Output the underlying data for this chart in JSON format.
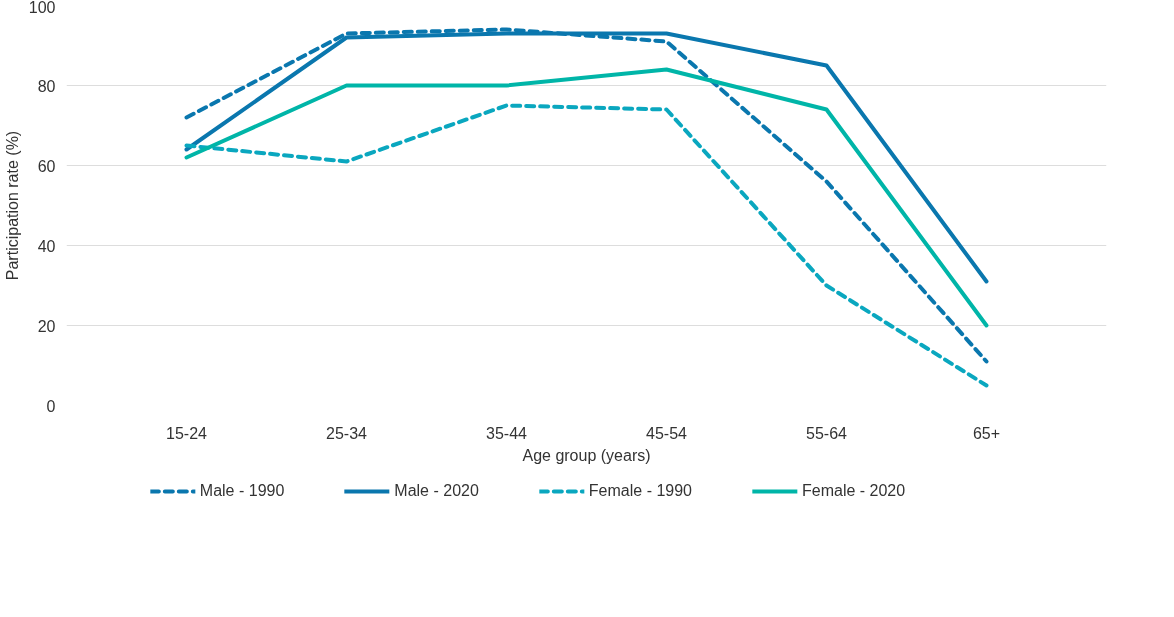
{
  "chart_data": {
    "type": "line",
    "xlabel": "Age group (years)",
    "ylabel": "Participation rate (%)",
    "categories": [
      "15-24",
      "25-34",
      "35-44",
      "45-54",
      "55-64",
      "65+"
    ],
    "ylim": [
      0,
      100
    ],
    "yticks": [
      0,
      20,
      40,
      60,
      80,
      100
    ],
    "grid": "y",
    "legend": "bottom",
    "marker": "none",
    "series": [
      {
        "name": "Male - 1990",
        "color": "#0a77ae",
        "line_style": "dashed",
        "values": [
          72,
          93,
          94,
          91,
          56,
          11
        ]
      },
      {
        "name": "Male - 2020",
        "color": "#0a77ae",
        "line_style": "solid",
        "values": [
          64,
          92,
          93,
          93,
          85,
          31
        ]
      },
      {
        "name": "Female - 1990",
        "color": "#0aa7bf",
        "line_style": "dashed",
        "values": [
          65,
          61,
          75,
          74,
          30,
          5
        ]
      },
      {
        "name": "Female - 2020",
        "color": "#00b5a8",
        "line_style": "solid",
        "values": [
          62,
          80,
          80,
          84,
          74,
          20
        ]
      }
    ]
  }
}
